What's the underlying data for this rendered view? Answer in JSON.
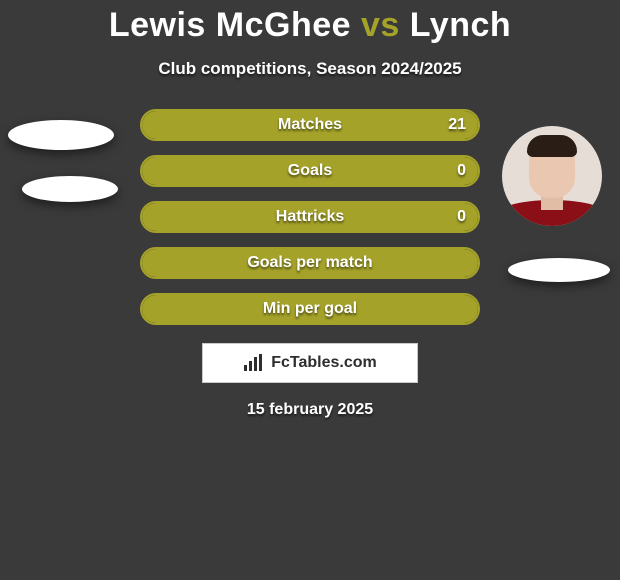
{
  "title": {
    "left": "Lewis McGhee",
    "mid": "vs",
    "right": "Lynch"
  },
  "subtitle": "Club competitions, Season 2024/2025",
  "colors": {
    "left_accent": "#ffffff",
    "right_accent": "#a4a229",
    "bar_border": "#a4a229",
    "bar_fill_right": "#a4a229",
    "bar_fill_left": "#ffffff",
    "background": "#3a3a3a"
  },
  "bars": [
    {
      "label": "Matches",
      "left": "",
      "right": "21",
      "left_pct": 0,
      "right_pct": 100
    },
    {
      "label": "Goals",
      "left": "",
      "right": "0",
      "left_pct": 0,
      "right_pct": 100
    },
    {
      "label": "Hattricks",
      "left": "",
      "right": "0",
      "left_pct": 0,
      "right_pct": 100
    },
    {
      "label": "Goals per match",
      "left": "",
      "right": "",
      "left_pct": 0,
      "right_pct": 100
    },
    {
      "label": "Min per goal",
      "left": "",
      "right": "",
      "left_pct": 0,
      "right_pct": 100
    }
  ],
  "brand": "FcTables.com",
  "date": "15 february 2025"
}
